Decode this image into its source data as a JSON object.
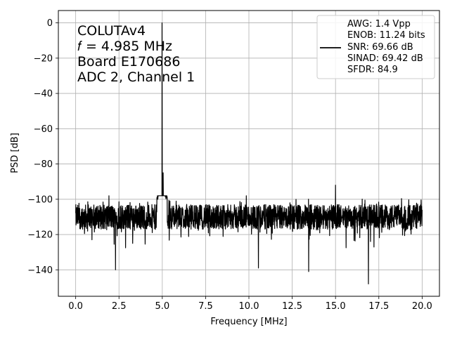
{
  "chart_data": {
    "type": "line",
    "title": "",
    "xlabel": "Frequency [MHz]",
    "ylabel": "PSD [dB]",
    "xlim": [
      -1.0,
      21.0
    ],
    "ylim": [
      -155,
      7
    ],
    "xticks": [
      0.0,
      2.5,
      5.0,
      7.5,
      10.0,
      12.5,
      15.0,
      17.5,
      20.0
    ],
    "xtick_labels": [
      "0.0",
      "2.5",
      "5.0",
      "7.5",
      "10.0",
      "12.5",
      "15.0",
      "17.5",
      "20.0"
    ],
    "yticks": [
      0,
      -20,
      -40,
      -60,
      -80,
      -100,
      -120,
      -140
    ],
    "ytick_labels": [
      "0",
      "−20",
      "−40",
      "−60",
      "−80",
      "−100",
      "−120",
      "−140"
    ],
    "grid": true,
    "annotation_lines": [
      "COLUTAv4",
      "𝑓 = 4.985 MHz",
      "Board E170686",
      "ADC 2, Channel 1"
    ],
    "legend": {
      "placement": "top-right",
      "line_color": "#000000",
      "lines": [
        "AWG: 1.4 Vpp",
        "ENOB: 11.24 bits",
        "SNR: 69.66 dB",
        "SINAD: 69.42 dB",
        "SFDR: 84.9"
      ]
    },
    "series": [
      {
        "color": "#000000",
        "description_points": {
          "noise_floor_mean": -110,
          "noise_floor_range": [
            -124,
            -98
          ],
          "fundamental": {
            "x": 4.985,
            "y": 0
          },
          "spurs": [
            {
              "x": 5.05,
              "y": -85
            },
            {
              "x": 15.0,
              "y": -92
            },
            {
              "x": 9.85,
              "y": -98
            },
            {
              "x": 2.3,
              "y": -140
            },
            {
              "x": 10.55,
              "y": -139
            },
            {
              "x": 13.45,
              "y": -141
            },
            {
              "x": 16.9,
              "y": -148
            }
          ]
        }
      }
    ]
  }
}
